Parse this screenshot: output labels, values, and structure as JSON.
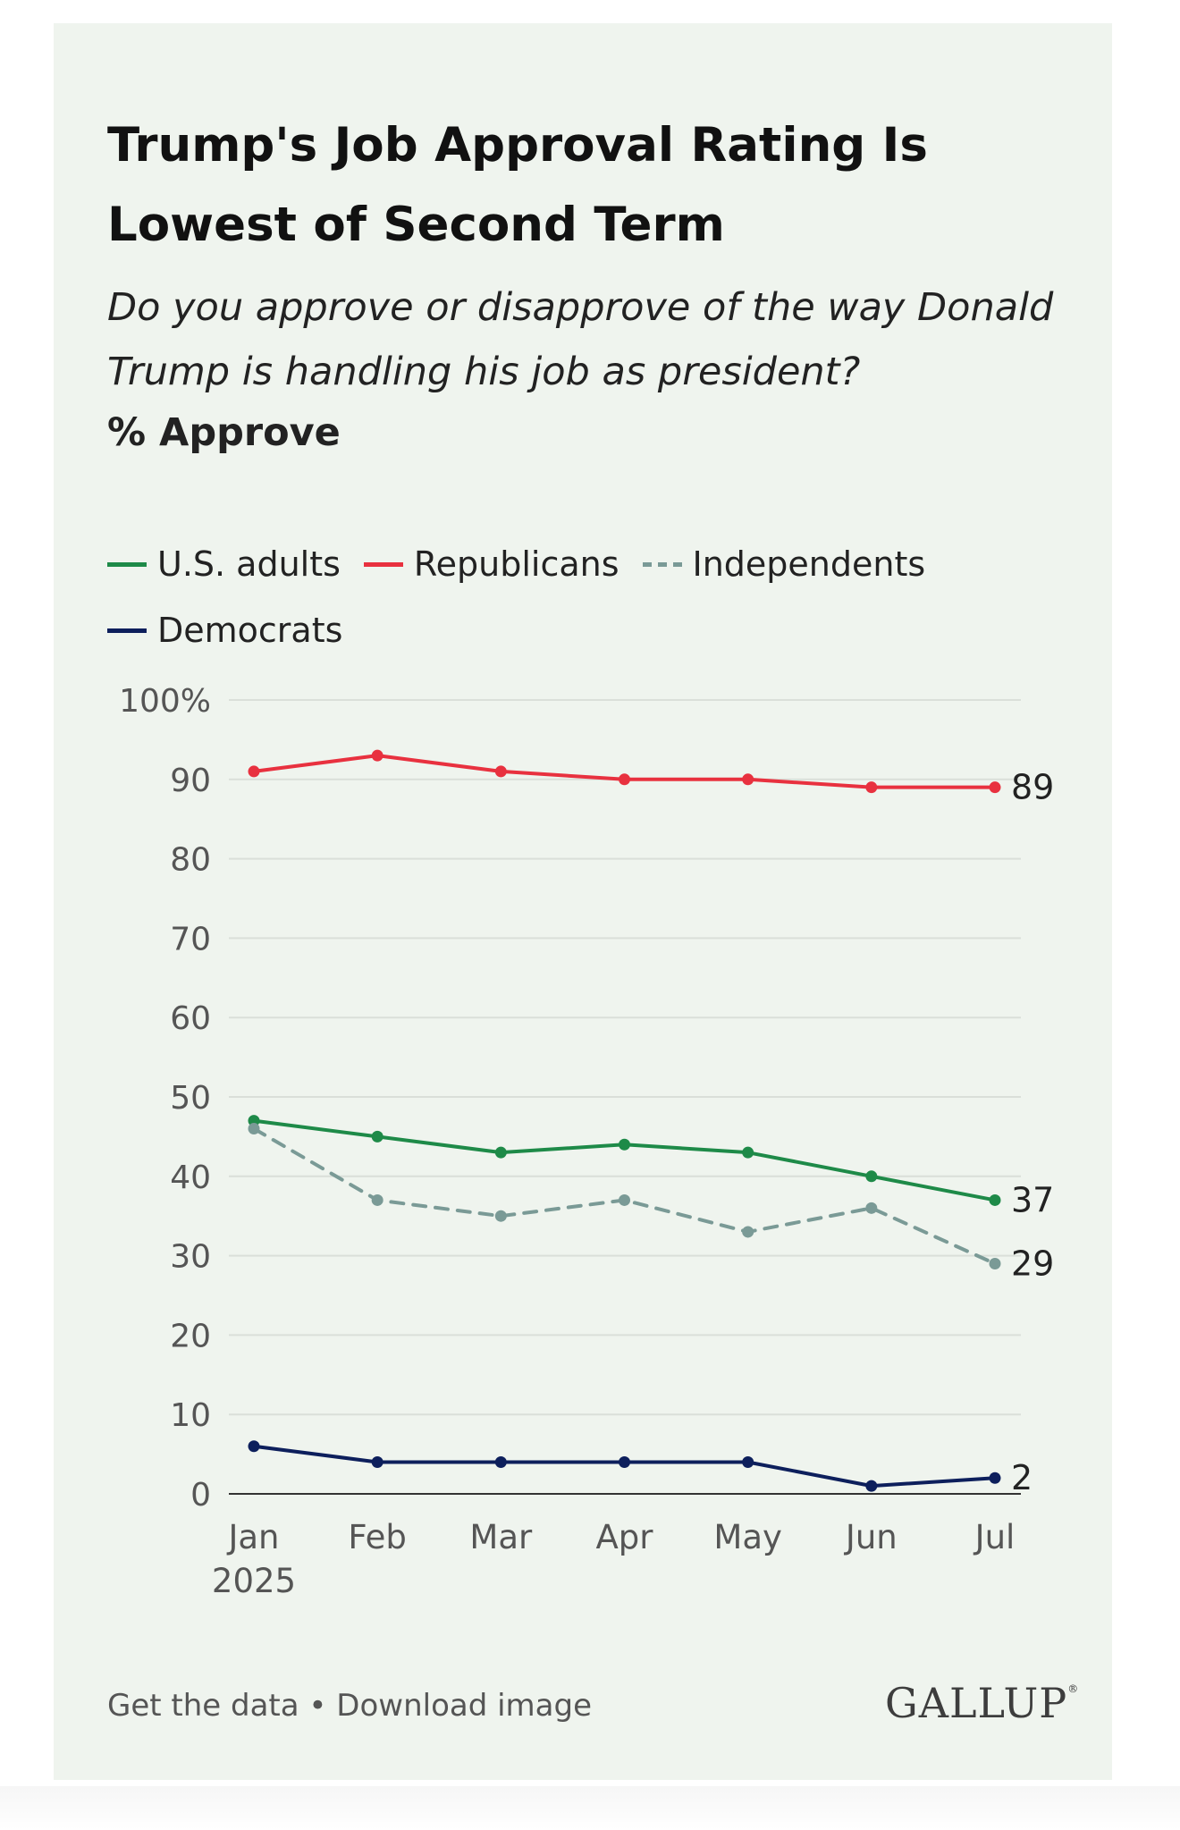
{
  "title": "Trump's Job Approval Rating Is Lowest of Second Term",
  "subtitle": "Do you approve or disapprove of the way Donald Trump is handling his job as president?",
  "measure": "% Approve",
  "legend": [
    {
      "label": "U.S. adults",
      "color": "#1e8a48",
      "style": "solid"
    },
    {
      "label": "Republicans",
      "color": "#e8313f",
      "style": "solid"
    },
    {
      "label": "Independents",
      "color": "#7a9a96",
      "style": "dashed"
    },
    {
      "label": "Democrats",
      "color": "#0d1f5c",
      "style": "solid"
    }
  ],
  "chart_data": {
    "type": "line",
    "title": "Trump's Job Approval Rating Is Lowest of Second Term",
    "xlabel": "",
    "ylabel": "% Approve",
    "categories": [
      "Jan",
      "Feb",
      "Mar",
      "Apr",
      "May",
      "Jun",
      "Jul"
    ],
    "category_sub": [
      "2025",
      "",
      "",
      "",
      "",
      "",
      ""
    ],
    "ylim": [
      0,
      100
    ],
    "yticks": [
      "0",
      "10",
      "20",
      "30",
      "40",
      "50",
      "60",
      "70",
      "80",
      "90",
      "100%"
    ],
    "grid": true,
    "series": [
      {
        "name": "Republicans",
        "color": "#e8313f",
        "dashed": false,
        "values": [
          91,
          93,
          91,
          90,
          90,
          89,
          89
        ],
        "end_label": "89"
      },
      {
        "name": "U.S. adults",
        "color": "#1e8a48",
        "dashed": false,
        "values": [
          47,
          45,
          43,
          44,
          43,
          40,
          37
        ],
        "end_label": "37"
      },
      {
        "name": "Independents",
        "color": "#7a9a96",
        "dashed": true,
        "values": [
          46,
          37,
          35,
          37,
          33,
          36,
          29
        ],
        "end_label": "29"
      },
      {
        "name": "Democrats",
        "color": "#0d1f5c",
        "dashed": false,
        "values": [
          6,
          4,
          4,
          4,
          4,
          1,
          2
        ],
        "end_label": "2"
      }
    ]
  },
  "footer": {
    "get_data": "Get the data",
    "separator": "•",
    "download": "Download image"
  },
  "brand": {
    "logo": "GALLUP",
    "mark": "®"
  }
}
